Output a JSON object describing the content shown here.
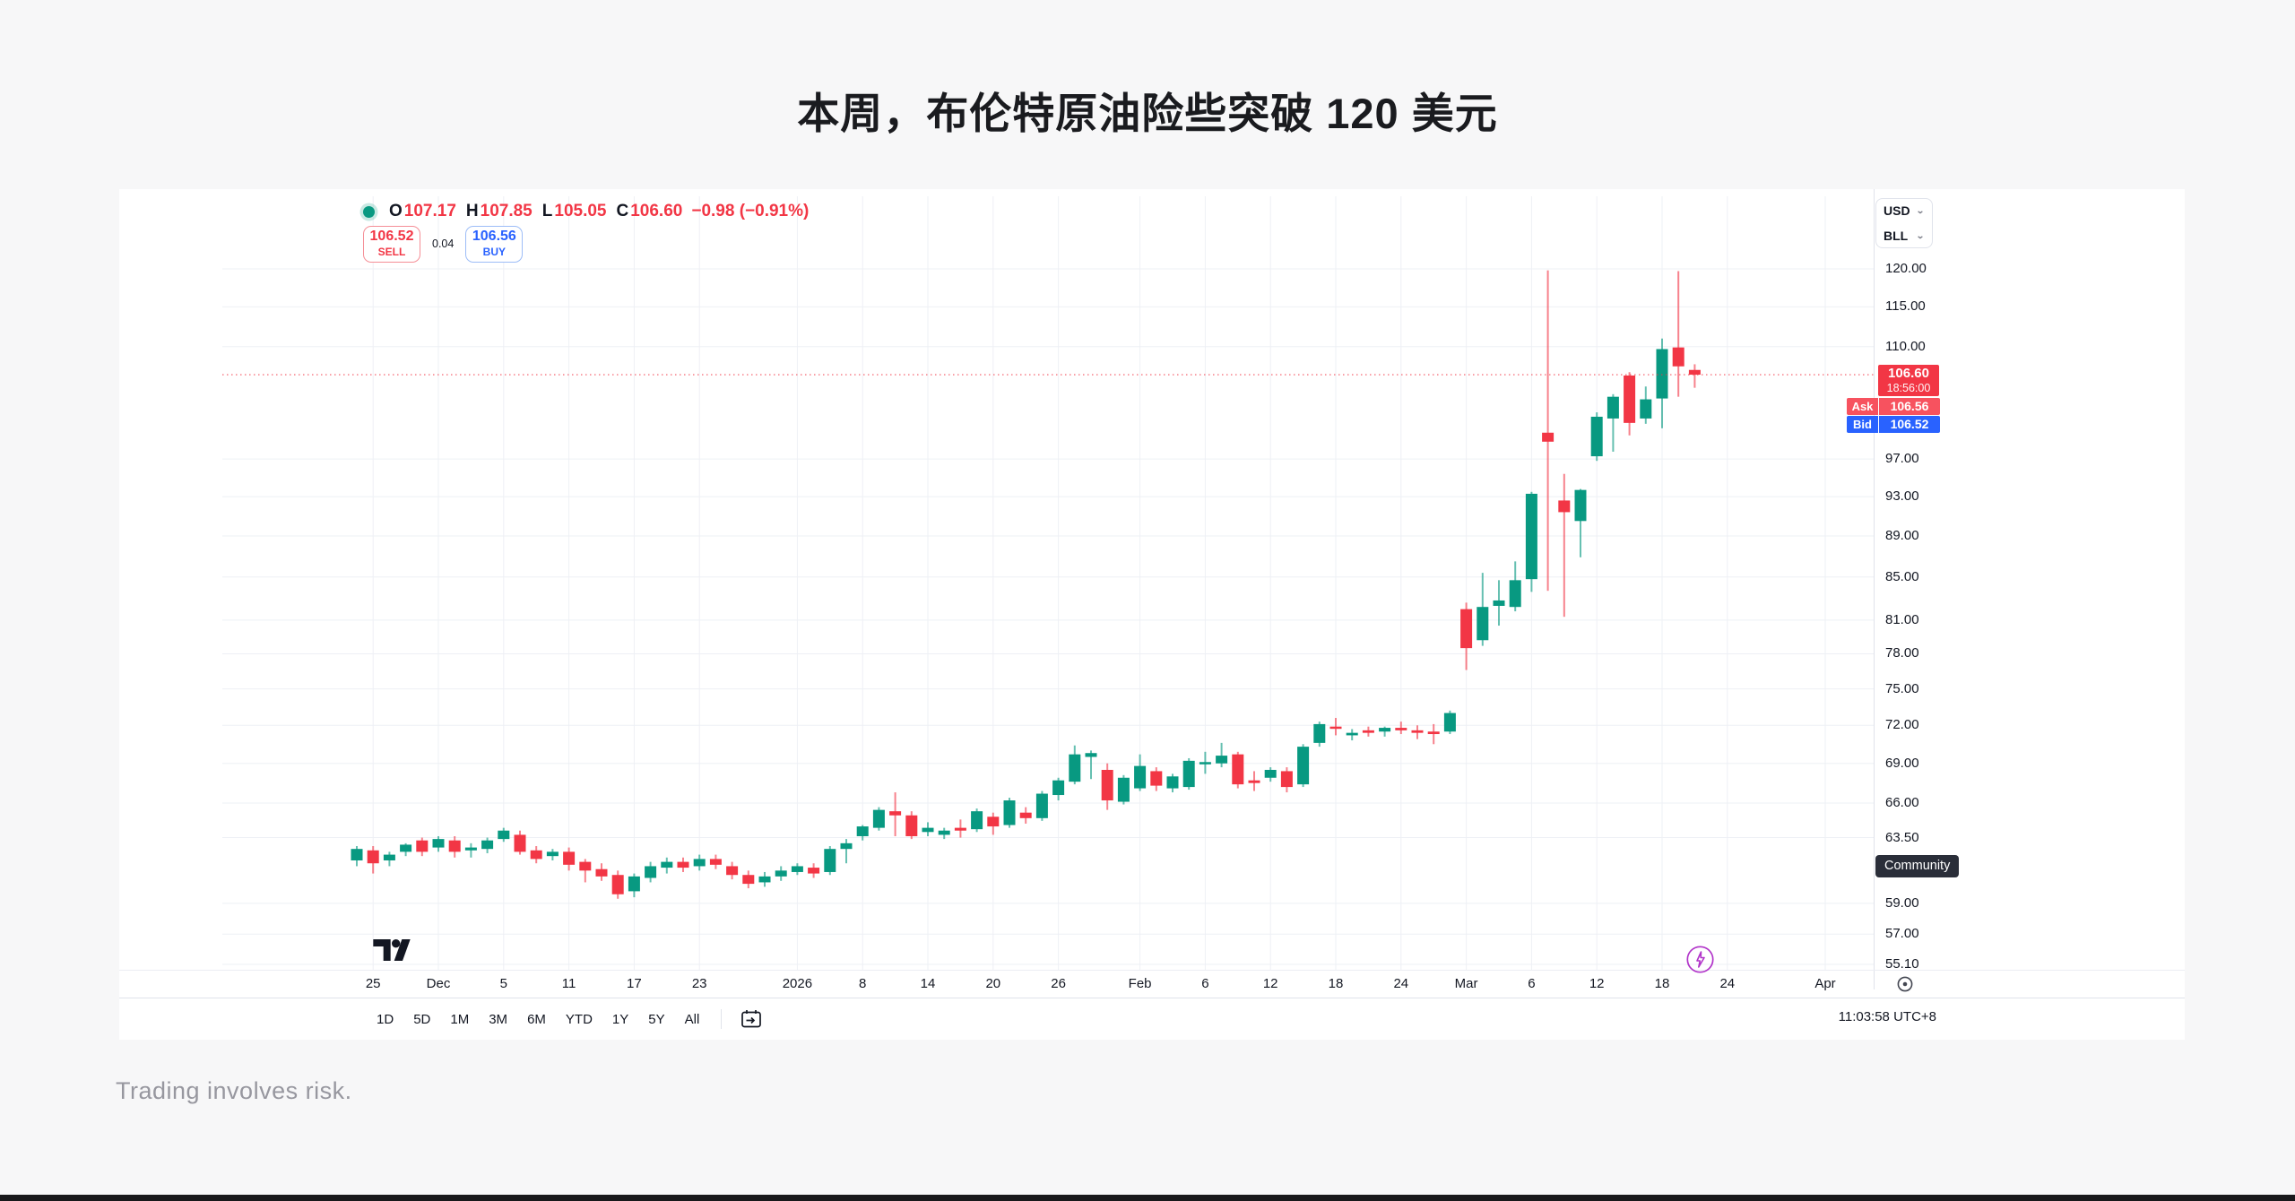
{
  "header": {
    "title": "本周，布伦特原油险些突破 120 美元"
  },
  "footer": {
    "disclaimer": "Trading involves risk."
  },
  "chart": {
    "legend": {
      "o_label": "O",
      "o": "107.17",
      "h_label": "H",
      "h": "107.85",
      "l_label": "L",
      "l": "105.05",
      "c_label": "C",
      "c": "106.60",
      "change": "−0.98 (−0.91%)"
    },
    "order_panel": {
      "sell_price": "106.52",
      "sell_label": "SELL",
      "spread": "0.04",
      "buy_price": "106.56",
      "buy_label": "BUY"
    },
    "symbol_selector": {
      "currency": "USD",
      "unit": "BLL"
    },
    "price_labels": {
      "last": "106.60",
      "countdown": "18:56:00",
      "ask_label": "Ask",
      "ask": "106.56",
      "bid_label": "Bid",
      "bid": "106.52"
    },
    "community_label": "Community",
    "toolbar": {
      "ranges": [
        "1D",
        "5D",
        "1M",
        "3M",
        "6M",
        "YTD",
        "1Y",
        "5Y",
        "All"
      ],
      "clock": "11:03:58 UTC+8"
    }
  },
  "chart_data": {
    "type": "candlestick",
    "scale": "logarithmic",
    "currency": "USD",
    "unit": "BLL",
    "last_price": 106.6,
    "last_change": -0.98,
    "last_change_pct": -0.91,
    "ask": 106.56,
    "bid": 106.52,
    "ylim": [
      54.0,
      122.0
    ],
    "grid": true,
    "colors": {
      "up": "#089981",
      "down": "#f23645",
      "last_line": "#f23645",
      "ask": "#f7525f",
      "bid": "#2962ff"
    },
    "y_ticks": [
      {
        "p": 120.0,
        "t": "120.00"
      },
      {
        "p": 115.0,
        "t": "115.00"
      },
      {
        "p": 110.0,
        "t": "110.00"
      },
      {
        "p": 97.0,
        "t": "97.00"
      },
      {
        "p": 93.0,
        "t": "93.00"
      },
      {
        "p": 89.0,
        "t": "89.00"
      },
      {
        "p": 85.0,
        "t": "85.00"
      },
      {
        "p": 81.0,
        "t": "81.00"
      },
      {
        "p": 78.0,
        "t": "78.00"
      },
      {
        "p": 75.0,
        "t": "75.00"
      },
      {
        "p": 72.0,
        "t": "72.00"
      },
      {
        "p": 69.0,
        "t": "69.00"
      },
      {
        "p": 66.0,
        "t": "66.00"
      },
      {
        "p": 63.5,
        "t": "63.50"
      },
      {
        "p": 59.0,
        "t": "59.00"
      },
      {
        "p": 57.0,
        "t": "57.00"
      },
      {
        "p": 55.1,
        "t": "55.10"
      }
    ],
    "x_labels": [
      {
        "i": 1,
        "t": "25"
      },
      {
        "i": 5,
        "t": "Dec"
      },
      {
        "i": 9,
        "t": "5"
      },
      {
        "i": 13,
        "t": "11"
      },
      {
        "i": 17,
        "t": "17"
      },
      {
        "i": 21,
        "t": "23"
      },
      {
        "i": 27,
        "t": "2026"
      },
      {
        "i": 31,
        "t": "8"
      },
      {
        "i": 35,
        "t": "14"
      },
      {
        "i": 39,
        "t": "20"
      },
      {
        "i": 43,
        "t": "26"
      },
      {
        "i": 48,
        "t": "Feb"
      },
      {
        "i": 52,
        "t": "6"
      },
      {
        "i": 56,
        "t": "12"
      },
      {
        "i": 60,
        "t": "18"
      },
      {
        "i": 64,
        "t": "24"
      },
      {
        "i": 68,
        "t": "Mar"
      },
      {
        "i": 72,
        "t": "6"
      },
      {
        "i": 76,
        "t": "12"
      },
      {
        "i": 80,
        "t": "18"
      },
      {
        "i": 84,
        "t": "24"
      },
      {
        "i": 90,
        "t": "Apr"
      }
    ],
    "candles": [
      {
        "d": "Nov 24",
        "o": 61.9,
        "h": 62.9,
        "l": 61.5,
        "c": 62.7
      },
      {
        "d": "Nov 25",
        "o": 62.6,
        "h": 62.9,
        "l": 61.0,
        "c": 61.7
      },
      {
        "d": "Nov 26",
        "o": 61.9,
        "h": 62.5,
        "l": 61.5,
        "c": 62.3
      },
      {
        "d": "Nov 27",
        "o": 62.5,
        "h": 63.1,
        "l": 62.2,
        "c": 63.0
      },
      {
        "d": "Nov 28",
        "o": 63.3,
        "h": 63.5,
        "l": 62.2,
        "c": 62.5
      },
      {
        "d": "Dec 1",
        "o": 62.8,
        "h": 63.6,
        "l": 62.5,
        "c": 63.4
      },
      {
        "d": "Dec 2",
        "o": 63.3,
        "h": 63.6,
        "l": 62.1,
        "c": 62.5
      },
      {
        "d": "Dec 3",
        "o": 62.6,
        "h": 63.1,
        "l": 62.1,
        "c": 62.8
      },
      {
        "d": "Dec 4",
        "o": 62.7,
        "h": 63.5,
        "l": 62.4,
        "c": 63.3
      },
      {
        "d": "Dec 5",
        "o": 63.4,
        "h": 64.2,
        "l": 63.2,
        "c": 64.0
      },
      {
        "d": "Dec 8",
        "o": 63.7,
        "h": 64.0,
        "l": 62.3,
        "c": 62.5
      },
      {
        "d": "Dec 9",
        "o": 62.6,
        "h": 62.9,
        "l": 61.7,
        "c": 62.0
      },
      {
        "d": "Dec 10",
        "o": 62.2,
        "h": 62.7,
        "l": 61.9,
        "c": 62.5
      },
      {
        "d": "Dec 11",
        "o": 62.5,
        "h": 62.8,
        "l": 61.2,
        "c": 61.6
      },
      {
        "d": "Dec 12",
        "o": 61.8,
        "h": 62.0,
        "l": 60.4,
        "c": 61.2
      },
      {
        "d": "Dec 15",
        "o": 61.3,
        "h": 61.7,
        "l": 60.5,
        "c": 60.8
      },
      {
        "d": "Dec 16",
        "o": 60.9,
        "h": 61.2,
        "l": 59.3,
        "c": 59.6
      },
      {
        "d": "Dec 17",
        "o": 59.8,
        "h": 61.0,
        "l": 59.4,
        "c": 60.8
      },
      {
        "d": "Dec 18",
        "o": 60.7,
        "h": 61.8,
        "l": 60.4,
        "c": 61.5
      },
      {
        "d": "Dec 19",
        "o": 61.4,
        "h": 62.1,
        "l": 61.0,
        "c": 61.8
      },
      {
        "d": "Dec 22",
        "o": 61.8,
        "h": 62.1,
        "l": 61.1,
        "c": 61.4
      },
      {
        "d": "Dec 23",
        "o": 61.5,
        "h": 62.3,
        "l": 61.2,
        "c": 62.0
      },
      {
        "d": "Dec 24",
        "o": 62.0,
        "h": 62.3,
        "l": 61.3,
        "c": 61.6
      },
      {
        "d": "Dec 26",
        "o": 61.5,
        "h": 61.8,
        "l": 60.6,
        "c": 60.9
      },
      {
        "d": "Dec 29",
        "o": 60.9,
        "h": 61.2,
        "l": 60.0,
        "c": 60.3
      },
      {
        "d": "Dec 30",
        "o": 60.4,
        "h": 61.1,
        "l": 60.1,
        "c": 60.8
      },
      {
        "d": "Dec 31",
        "o": 60.8,
        "h": 61.5,
        "l": 60.5,
        "c": 61.2
      },
      {
        "d": "Jan 2",
        "o": 61.1,
        "h": 61.7,
        "l": 60.9,
        "c": 61.5
      },
      {
        "d": "Jan 5",
        "o": 61.4,
        "h": 61.7,
        "l": 60.7,
        "c": 61.0
      },
      {
        "d": "Jan 6",
        "o": 61.1,
        "h": 62.9,
        "l": 60.9,
        "c": 62.7
      },
      {
        "d": "Jan 7",
        "o": 62.7,
        "h": 63.4,
        "l": 61.7,
        "c": 63.1
      },
      {
        "d": "Jan 8",
        "o": 63.6,
        "h": 64.4,
        "l": 63.3,
        "c": 64.3
      },
      {
        "d": "Jan 9",
        "o": 64.2,
        "h": 65.7,
        "l": 64.0,
        "c": 65.5
      },
      {
        "d": "Jan 12",
        "o": 65.4,
        "h": 66.8,
        "l": 63.6,
        "c": 65.1
      },
      {
        "d": "Jan 13",
        "o": 65.1,
        "h": 65.4,
        "l": 63.4,
        "c": 63.6
      },
      {
        "d": "Jan 14",
        "o": 63.9,
        "h": 64.6,
        "l": 63.6,
        "c": 64.2
      },
      {
        "d": "Jan 15",
        "o": 63.7,
        "h": 64.2,
        "l": 63.4,
        "c": 64.0
      },
      {
        "d": "Jan 16",
        "o": 64.2,
        "h": 64.8,
        "l": 63.5,
        "c": 64.0
      },
      {
        "d": "Jan 19",
        "o": 64.1,
        "h": 65.6,
        "l": 63.9,
        "c": 65.4
      },
      {
        "d": "Jan 20",
        "o": 65.0,
        "h": 65.3,
        "l": 63.7,
        "c": 64.3
      },
      {
        "d": "Jan 21",
        "o": 64.4,
        "h": 66.4,
        "l": 64.2,
        "c": 66.2
      },
      {
        "d": "Jan 22",
        "o": 65.3,
        "h": 65.7,
        "l": 64.5,
        "c": 64.9
      },
      {
        "d": "Jan 23",
        "o": 64.9,
        "h": 66.9,
        "l": 64.7,
        "c": 66.7
      },
      {
        "d": "Jan 26",
        "o": 66.6,
        "h": 67.9,
        "l": 66.2,
        "c": 67.7
      },
      {
        "d": "Jan 27",
        "o": 67.6,
        "h": 70.4,
        "l": 67.4,
        "c": 69.7
      },
      {
        "d": "Jan 28",
        "o": 69.5,
        "h": 70.0,
        "l": 67.8,
        "c": 69.8
      },
      {
        "d": "Jan 29",
        "o": 68.5,
        "h": 69.0,
        "l": 65.5,
        "c": 66.2
      },
      {
        "d": "Jan 30",
        "o": 66.1,
        "h": 68.1,
        "l": 65.9,
        "c": 67.9
      },
      {
        "d": "Feb 2",
        "o": 67.1,
        "h": 69.7,
        "l": 66.9,
        "c": 68.8
      },
      {
        "d": "Feb 3",
        "o": 68.4,
        "h": 68.7,
        "l": 66.9,
        "c": 67.3
      },
      {
        "d": "Feb 4",
        "o": 67.1,
        "h": 68.2,
        "l": 66.8,
        "c": 68.0
      },
      {
        "d": "Feb 5",
        "o": 67.2,
        "h": 69.4,
        "l": 67.0,
        "c": 69.2
      },
      {
        "d": "Feb 6",
        "o": 69.0,
        "h": 69.9,
        "l": 68.2,
        "c": 69.1
      },
      {
        "d": "Feb 9",
        "o": 69.0,
        "h": 70.6,
        "l": 68.7,
        "c": 69.6
      },
      {
        "d": "Feb 10",
        "o": 69.7,
        "h": 69.9,
        "l": 67.1,
        "c": 67.4
      },
      {
        "d": "Feb 11",
        "o": 67.7,
        "h": 68.4,
        "l": 66.9,
        "c": 67.5
      },
      {
        "d": "Feb 12",
        "o": 67.9,
        "h": 68.7,
        "l": 67.6,
        "c": 68.5
      },
      {
        "d": "Feb 13",
        "o": 68.4,
        "h": 68.7,
        "l": 66.8,
        "c": 67.2
      },
      {
        "d": "Feb 16",
        "o": 67.4,
        "h": 70.5,
        "l": 67.2,
        "c": 70.3
      },
      {
        "d": "Feb 17",
        "o": 70.6,
        "h": 72.3,
        "l": 70.3,
        "c": 72.1
      },
      {
        "d": "Feb 18",
        "o": 71.9,
        "h": 72.6,
        "l": 71.2,
        "c": 71.8
      },
      {
        "d": "Feb 19",
        "o": 71.2,
        "h": 71.7,
        "l": 70.8,
        "c": 71.4
      },
      {
        "d": "Feb 20",
        "o": 71.6,
        "h": 71.9,
        "l": 71.1,
        "c": 71.4
      },
      {
        "d": "Feb 23",
        "o": 71.5,
        "h": 71.9,
        "l": 71.1,
        "c": 71.8
      },
      {
        "d": "Feb 24",
        "o": 71.8,
        "h": 72.3,
        "l": 71.3,
        "c": 71.6
      },
      {
        "d": "Feb 25",
        "o": 71.6,
        "h": 72.0,
        "l": 70.9,
        "c": 71.4
      },
      {
        "d": "Feb 26",
        "o": 71.5,
        "h": 72.1,
        "l": 70.5,
        "c": 71.3
      },
      {
        "d": "Feb 27",
        "o": 71.5,
        "h": 73.2,
        "l": 71.3,
        "c": 73.0
      },
      {
        "d": "Mar 2",
        "o": 82.0,
        "h": 82.6,
        "l": 76.6,
        "c": 78.5
      },
      {
        "d": "Mar 3",
        "o": 79.2,
        "h": 85.4,
        "l": 78.7,
        "c": 82.2
      },
      {
        "d": "Mar 4",
        "o": 82.3,
        "h": 84.7,
        "l": 80.5,
        "c": 82.8
      },
      {
        "d": "Mar 5",
        "o": 82.2,
        "h": 86.5,
        "l": 81.8,
        "c": 84.7
      },
      {
        "d": "Mar 6",
        "o": 84.8,
        "h": 93.5,
        "l": 83.6,
        "c": 93.3
      },
      {
        "d": "Mar 9",
        "o": 99.9,
        "h": 119.8,
        "l": 83.7,
        "c": 98.9
      },
      {
        "d": "Mar 10",
        "o": 92.6,
        "h": 95.4,
        "l": 81.3,
        "c": 91.4
      },
      {
        "d": "Mar 11",
        "o": 90.5,
        "h": 93.8,
        "l": 86.9,
        "c": 93.7
      },
      {
        "d": "Mar 12",
        "o": 97.3,
        "h": 102.2,
        "l": 96.8,
        "c": 101.7
      },
      {
        "d": "Mar 13",
        "o": 101.5,
        "h": 104.3,
        "l": 97.8,
        "c": 104.0
      },
      {
        "d": "Mar 16",
        "o": 106.5,
        "h": 106.9,
        "l": 99.6,
        "c": 101.0
      },
      {
        "d": "Mar 17",
        "o": 101.5,
        "h": 105.2,
        "l": 100.9,
        "c": 103.7
      },
      {
        "d": "Mar 18",
        "o": 103.8,
        "h": 111.0,
        "l": 100.4,
        "c": 109.7
      },
      {
        "d": "Mar 19",
        "o": 109.9,
        "h": 119.7,
        "l": 104.0,
        "c": 107.6
      },
      {
        "d": "Mar 20",
        "o": 107.17,
        "h": 107.85,
        "l": 105.05,
        "c": 106.6
      }
    ]
  }
}
